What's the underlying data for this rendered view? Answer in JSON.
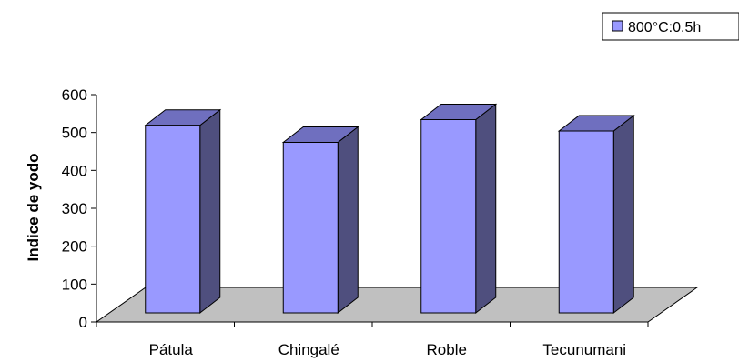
{
  "chart_data": {
    "type": "bar",
    "style": "3d-column",
    "categories": [
      "Pátula",
      "Chingalé",
      "Roble",
      "Tecunumani"
    ],
    "series": [
      {
        "name": "800°C:0.5h",
        "values": [
          495,
          450,
          510,
          480
        ]
      }
    ],
    "title": "",
    "xlabel": "",
    "ylabel": "Indice de yodo",
    "ylim": [
      0,
      600
    ],
    "yticks": [
      "0",
      "100",
      "200",
      "300",
      "400",
      "500",
      "600"
    ],
    "grid": false,
    "legend_position": "top-right",
    "colors": {
      "bar_front": "#9999FF",
      "bar_side": "#4F4F7E",
      "bar_top": "#6F6FBF",
      "floor": "#C0C0C0",
      "axis": "#000000"
    }
  }
}
